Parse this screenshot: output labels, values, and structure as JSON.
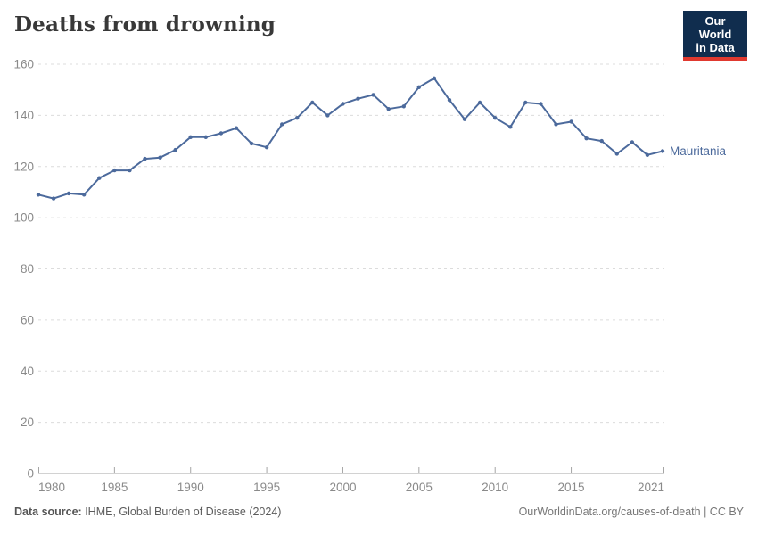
{
  "header": {
    "title": "Deaths from drowning",
    "logo": {
      "line1": "Our World",
      "line2": "in Data",
      "bg_color": "#102d4e",
      "accent_color": "#e0392f"
    }
  },
  "footer": {
    "source_label": "Data source:",
    "source_value": " IHME, Global Burden of Disease (2024)",
    "credit": "OurWorldinData.org/causes-of-death | CC BY"
  },
  "chart_data": {
    "type": "line",
    "title": "Deaths from drowning",
    "xlabel": "",
    "ylabel": "",
    "xlim": [
      1980,
      2021
    ],
    "ylim": [
      0,
      160
    ],
    "grid": "horizontal-dashed",
    "legend_position": "end-of-line-label",
    "xticks": [
      1980,
      1985,
      1990,
      1995,
      2000,
      2005,
      2010,
      2015,
      2021
    ],
    "yticks": [
      0,
      20,
      40,
      60,
      80,
      100,
      120,
      140,
      160
    ],
    "x": [
      1980,
      1981,
      1982,
      1983,
      1984,
      1985,
      1986,
      1987,
      1988,
      1989,
      1990,
      1991,
      1992,
      1993,
      1994,
      1995,
      1996,
      1997,
      1998,
      1999,
      2000,
      2001,
      2002,
      2003,
      2004,
      2005,
      2006,
      2007,
      2008,
      2009,
      2010,
      2011,
      2012,
      2013,
      2014,
      2015,
      2016,
      2017,
      2018,
      2019,
      2020,
      2021
    ],
    "series": [
      {
        "name": "Mauritania",
        "color": "#4C6A9C",
        "values": [
          109,
          107.5,
          109.5,
          109,
          115.5,
          118.5,
          118.5,
          123,
          123.5,
          126.5,
          131.5,
          131.5,
          133,
          135,
          129,
          127.5,
          136.5,
          139,
          145,
          140,
          144.5,
          146.5,
          148,
          142.5,
          143.5,
          151,
          154.5,
          146,
          138.5,
          145,
          139,
          135.5,
          145,
          144.5,
          136.5,
          137.5,
          131,
          130,
          125,
          129.5,
          124.5,
          126
        ]
      }
    ],
    "colors": {
      "grid": "#dcdcdc",
      "axis": "#a5a5a5",
      "tick_label": "#8a8a8a",
      "series": "#4C6A9C"
    }
  }
}
